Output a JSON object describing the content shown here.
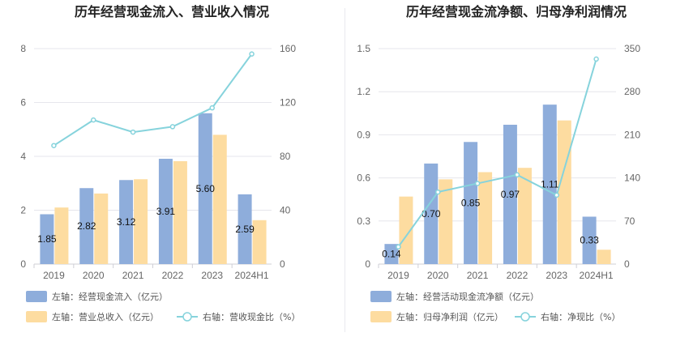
{
  "colors": {
    "bar_primary": "#8eaddb",
    "bar_secondary": "#fddca0",
    "line": "#86d3dc",
    "grid": "#e6e6ec",
    "axis": "#cfcfd6"
  },
  "chart_data": [
    {
      "type": "bar",
      "title": "历年经营现金流入、营业收入情况",
      "categories": [
        "2019",
        "2020",
        "2021",
        "2022",
        "2023",
        "2024H1"
      ],
      "ylim_left": [
        0,
        8
      ],
      "yticks_left": [
        0,
        2,
        4,
        6,
        8
      ],
      "ylim_right": [
        0,
        160
      ],
      "yticks_right": [
        0,
        40,
        80,
        120,
        160
      ],
      "grid": true,
      "series": [
        {
          "name": "左轴：经营现金流入（亿元）",
          "axis": "left",
          "kind": "bar",
          "values": [
            1.85,
            2.82,
            3.12,
            3.91,
            5.6,
            2.59
          ],
          "labels": [
            "1.85",
            "2.82",
            "3.12",
            "3.91",
            "5.60",
            "2.59"
          ]
        },
        {
          "name": "左轴：营业总收入（亿元）",
          "axis": "left",
          "kind": "bar",
          "values": [
            2.1,
            2.62,
            3.15,
            3.82,
            4.8,
            1.63
          ]
        },
        {
          "name": "右轴：营收现金比（%）",
          "axis": "right",
          "kind": "line",
          "values": [
            88,
            107,
            98,
            102,
            116,
            156
          ]
        }
      ],
      "legend": [
        "左轴：经营现金流入（亿元）",
        "左轴：营业总收入（亿元）",
        "右轴：营收现金比（%）"
      ],
      "legend_position": "bottom-left"
    },
    {
      "type": "bar",
      "title": "历年经营现金流净额、归母净利润情况",
      "categories": [
        "2019",
        "2020",
        "2021",
        "2022",
        "2023",
        "2024H1"
      ],
      "ylim_left": [
        0,
        1.5
      ],
      "yticks_left": [
        "0",
        "0.3",
        "0.6",
        "0.9",
        "1.2",
        "1.5"
      ],
      "ylim_right": [
        0,
        350
      ],
      "yticks_right": [
        0,
        70,
        140,
        210,
        280,
        350
      ],
      "grid": true,
      "series": [
        {
          "name": "左轴：经营活动现金流净额（亿元）",
          "axis": "left",
          "kind": "bar",
          "values": [
            0.14,
            0.7,
            0.85,
            0.97,
            1.11,
            0.33
          ],
          "labels": [
            "0.14",
            "0.70",
            "0.85",
            "0.97",
            "1.11",
            "0.33"
          ]
        },
        {
          "name": "左轴：归母净利润（亿元）",
          "axis": "left",
          "kind": "bar",
          "values": [
            0.47,
            0.59,
            0.64,
            0.67,
            1.0,
            0.1
          ]
        },
        {
          "name": "右轴：净现比（%）",
          "axis": "right",
          "kind": "line",
          "values": [
            28,
            117,
            131,
            145,
            112,
            333
          ]
        }
      ],
      "legend": [
        "左轴：经营活动现金流净额（亿元）",
        "左轴：归母净利润（亿元）",
        "右轴：净现比（%）"
      ],
      "legend_position": "bottom-left"
    }
  ]
}
